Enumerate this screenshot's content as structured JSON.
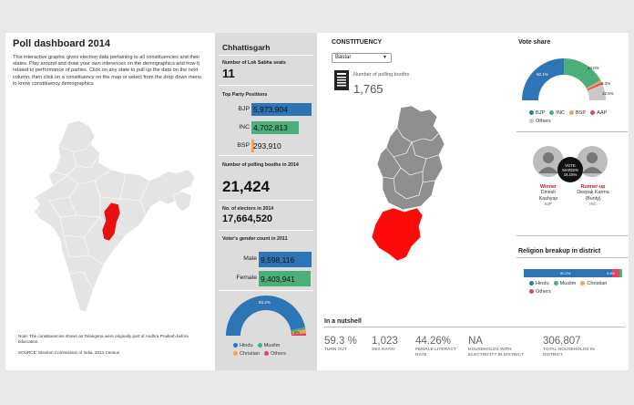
{
  "left": {
    "title": "Poll dashboard 2014",
    "intro": "This interactive graphic gives election data pertaining to all constituencies and their states. Play around and draw your own inferences on the demographics and how it related to performance of parties. Click on any state to pull up the data on the next column, then click on a constituency on the map or select from the drop down menu to know constituency demographics",
    "note": "Note: The constituencies shown as Telangana were originally part of Andhra Pradesh before bifurcation.",
    "source": "SOURCE: Election Commission of India, 2014 Census"
  },
  "state": {
    "name": "Chhattisgarh",
    "seats_label": "Number of Lok Sabha seats",
    "seats_value": "11",
    "top_party_label": "Top Party Positions",
    "parties": [
      {
        "name": "BJP",
        "value": "5,973,904",
        "share": 1.0,
        "color": "#2e75b6"
      },
      {
        "name": "INC",
        "value": "4,702,813",
        "share": 0.787,
        "color": "#4caf7a"
      },
      {
        "name": "BSP",
        "value": "293,910",
        "share": 0.049,
        "color": "#f0a35a"
      }
    ],
    "booths_label": "Number of polling booths in 2014",
    "booths_value": "21,424",
    "electors_label": "No. of electors in 2014",
    "electors_value": "17,664,520",
    "gender_label": "Voter's gender count in 2011",
    "gender": [
      {
        "name": "Male",
        "value": "9,598,116",
        "share": 1.0,
        "color": "#2e75b6"
      },
      {
        "name": "Female",
        "value": "9,403,941",
        "share": 0.98,
        "color": "#4caf7a"
      }
    ],
    "religion_pct": "93.2%",
    "religion_small": "1.9%",
    "religion_legend": [
      {
        "name": "Hindu",
        "color": "#2e75b6"
      },
      {
        "name": "Muslim",
        "color": "#4caf7a"
      },
      {
        "name": "Christian",
        "color": "#f0a35a"
      },
      {
        "name": "Others",
        "color": "#e0445e"
      }
    ]
  },
  "constituency": {
    "header": "CONSTITUENCY",
    "selected": "Bastar",
    "booths_label": "Number of polling booths",
    "booths_value": "1,765"
  },
  "vote_share": {
    "header": "Vote share",
    "bjp_pct": "50.1%",
    "inc_pct": "34.0%",
    "small_pct": "3.3%",
    "others_pct": "12.5%",
    "legend": [
      {
        "name": "BJP",
        "color": "#2e75b6"
      },
      {
        "name": "INC",
        "color": "#4caf7a"
      },
      {
        "name": "BSP",
        "color": "#f0a35a"
      },
      {
        "name": "AAP",
        "color": "#e0445e"
      },
      {
        "name": "Others",
        "color": "#c8c8c8"
      }
    ]
  },
  "candidates": {
    "badge_line1": "VOTE",
    "badge_line2": "MARGIN",
    "badge_line3": "16.15%",
    "winner_role": "Winner",
    "winner_name": "Dinesh Kashyap",
    "winner_party": "BJP",
    "runner_role": "Runner-up",
    "runner_name": "Deepak Karma (Bunty)",
    "runner_party": "INC"
  },
  "religion": {
    "header": "Religion breakup in district",
    "hindu_pct": "90.2%",
    "small_pct": "6.8%",
    "legend": [
      {
        "name": "Hindu",
        "color": "#2e75b6"
      },
      {
        "name": "Muslim",
        "color": "#4caf7a"
      },
      {
        "name": "Christian",
        "color": "#f0a35a"
      },
      {
        "name": "Others",
        "color": "#e0445e"
      }
    ]
  },
  "nutshell": {
    "header": "In a nutshell",
    "items": [
      {
        "value": "59.3 %",
        "label": "TURN OUT"
      },
      {
        "value": "1,023",
        "label": "SEX RATIO"
      },
      {
        "value": "44.26%",
        "label": "FEMALE LITERACY RATE"
      },
      {
        "value": "NA",
        "label": "HOUSEHOLDS WITH ELECTRICITY IN DISTRICT"
      },
      {
        "value": "306,807",
        "label": "TOTAL HOUSEHOLDS IN DISTRICT"
      }
    ]
  }
}
